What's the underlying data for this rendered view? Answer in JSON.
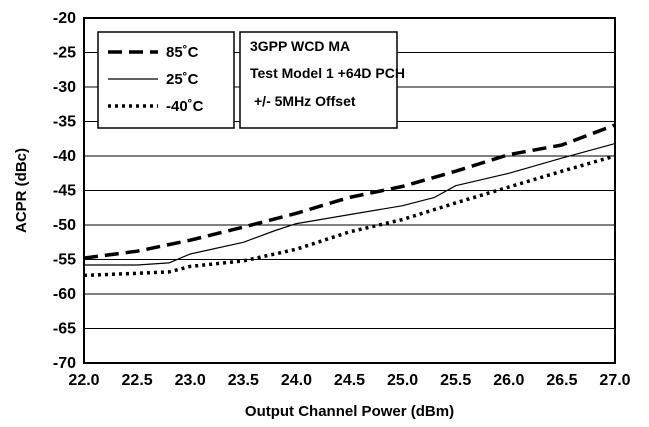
{
  "chart_data": {
    "type": "line",
    "title": "",
    "xlabel": "Output Channel Power (dBm)",
    "ylabel": "ACPR (dBc)",
    "xlim": [
      22.0,
      27.0
    ],
    "ylim": [
      -70,
      -20
    ],
    "xticks": [
      22.0,
      22.5,
      23.0,
      23.5,
      24.0,
      24.5,
      25.0,
      25.5,
      26.0,
      26.5,
      27.0
    ],
    "xtick_labels": [
      "22.0",
      "22.5",
      "23.0",
      "23.5",
      "24.0",
      "24.5",
      "25.0",
      "25.5",
      "26.0",
      "26.5",
      "27.0"
    ],
    "yticks": [
      -20,
      -25,
      -30,
      -35,
      -40,
      -45,
      -50,
      -55,
      -60,
      -65,
      -70
    ],
    "ytick_labels": [
      "-20",
      "-25",
      "-30",
      "-35",
      "-40",
      "-45",
      "-50",
      "-55",
      "-60",
      "-65",
      "-70"
    ],
    "grid": "horizontal",
    "legend_position": "top-left",
    "series": [
      {
        "name": "85˚C",
        "style": "dashed-thick",
        "x": [
          22.0,
          22.5,
          23.0,
          23.5,
          24.0,
          24.5,
          25.0,
          25.5,
          26.0,
          26.5,
          27.0
        ],
        "y": [
          -54.8,
          -53.8,
          -52.2,
          -50.3,
          -48.3,
          -46.0,
          -44.4,
          -42.2,
          -39.8,
          -38.4,
          -35.5
        ]
      },
      {
        "name": "25˚C",
        "style": "solid-thin",
        "x": [
          22.0,
          22.5,
          22.8,
          23.0,
          23.5,
          23.8,
          24.0,
          24.5,
          25.0,
          25.3,
          25.5,
          26.0,
          26.5,
          27.0
        ],
        "y": [
          -55.8,
          -55.8,
          -55.5,
          -54.2,
          -52.5,
          -50.8,
          -49.8,
          -48.5,
          -47.2,
          -46.0,
          -44.3,
          -42.5,
          -40.3,
          -38.2
        ]
      },
      {
        "name": "-40˚C",
        "style": "dotted-thick",
        "x": [
          22.0,
          22.5,
          22.8,
          23.0,
          23.5,
          24.0,
          24.5,
          25.0,
          25.5,
          26.0,
          26.5,
          27.0
        ],
        "y": [
          -57.3,
          -57.0,
          -56.8,
          -56.0,
          -55.2,
          -53.5,
          -51.0,
          -49.2,
          -46.8,
          -44.5,
          -42.2,
          -40.0
        ]
      }
    ],
    "annotation": [
      "3GPP WCD MA",
      "Test Model 1 +64D PCH",
      "+/- 5MHz Offset"
    ]
  }
}
